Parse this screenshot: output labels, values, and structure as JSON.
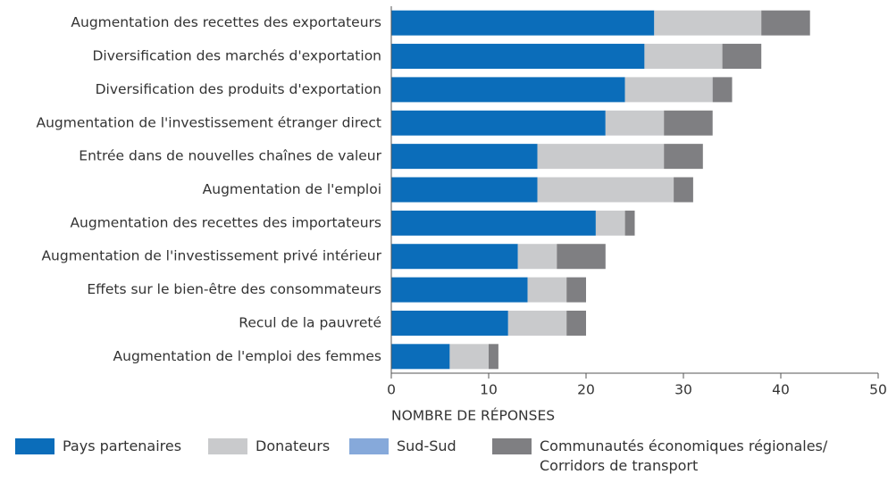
{
  "chart_data": {
    "type": "stacked-barh",
    "categories": [
      "Augmentation des recettes des exportateurs",
      "Diversification des marchés d'exportation",
      "Diversification des produits d'exportation",
      "Augmentation de l'investissement étranger direct",
      "Entrée dans de nouvelles chaînes de valeur",
      "Augmentation de l'emploi",
      "Augmentation des recettes des importateurs",
      "Augmentation de l'investissement privé intérieur",
      "Effets sur le bien-être des consommateurs",
      "Recul de la pauvreté",
      "Augmentation de l'emploi des femmes"
    ],
    "series": [
      {
        "name": "Pays partenaires",
        "color": "#0b6dba",
        "values": [
          27,
          26,
          24,
          22,
          15,
          15,
          21,
          13,
          14,
          12,
          6
        ]
      },
      {
        "name": "Donateurs",
        "color": "#c9cacc",
        "values": [
          11,
          8,
          9,
          6,
          13,
          14,
          3,
          4,
          4,
          6,
          4
        ]
      },
      {
        "name": "Sud-Sud",
        "color": "#86a9da",
        "values": [
          0,
          0,
          0,
          0,
          0,
          0,
          0,
          0,
          0,
          0,
          0
        ]
      },
      {
        "name": "Communautés économiques régionales/ Corridors de transport",
        "color": "#7f7f82",
        "values": [
          5,
          4,
          2,
          5,
          4,
          2,
          1,
          5,
          2,
          2,
          1
        ]
      }
    ],
    "xlabel": "NOMBRE DE RÉPONSES",
    "xlim": [
      0,
      50
    ],
    "xticks": [
      0,
      10,
      20,
      30,
      40,
      50
    ]
  }
}
